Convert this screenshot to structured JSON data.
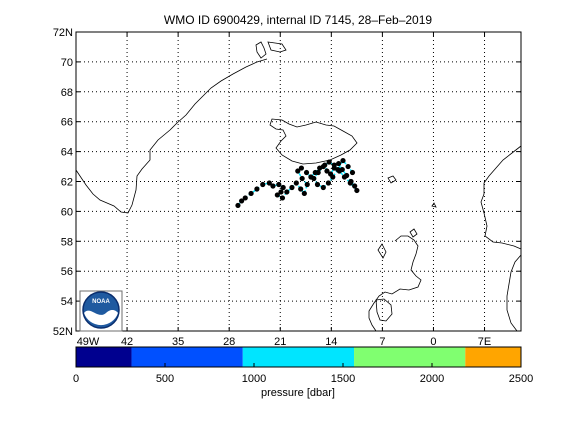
{
  "chart_data": {
    "type": "scatter",
    "title": "WMO ID 6900429, internal ID 7145, 28–Feb–2019",
    "x_tick_labels": [
      "49W",
      "42",
      "35",
      "28",
      "21",
      "14",
      "7",
      "0",
      "7E"
    ],
    "y_tick_labels": [
      "52N",
      "54",
      "56",
      "58",
      "60",
      "62",
      "64",
      "66",
      "68",
      "70",
      "72N"
    ],
    "xlim": [
      -49,
      12
    ],
    "ylim": [
      52,
      72
    ],
    "grid": true,
    "series": [
      {
        "marker_color": "#000000",
        "line_color": "#00e5ff",
        "x": [
          -26.8,
          -26.3,
          -25.8,
          -25.0,
          -24.2,
          -23.4,
          -22.5,
          -22.0,
          -21.2,
          -20.6,
          -20.9,
          -21.4,
          -20.7,
          -20.1,
          -19.4,
          -18.8,
          -18.2,
          -17.7,
          -17.3,
          -18.0,
          -18.6,
          -18.1,
          -17.4,
          -16.8,
          -16.2,
          -15.6,
          -14.9,
          -14.6,
          -14.1,
          -13.6,
          -13.0,
          -12.5,
          -11.9,
          -11.3,
          -10.8,
          -10.5,
          -11.4,
          -12.2,
          -12.9,
          -13.6,
          -14.3,
          -15.1,
          -15.8,
          -16.4,
          -15.9,
          -15.1,
          -14.4,
          -13.8,
          -13.1,
          -12.4,
          -11.7,
          -11.1
        ],
        "y": [
          60.4,
          60.7,
          60.9,
          61.2,
          61.5,
          61.8,
          61.9,
          61.7,
          61.8,
          61.6,
          61.3,
          61.1,
          60.9,
          61.3,
          61.6,
          61.9,
          61.5,
          61.2,
          61.8,
          62.2,
          62.7,
          62.9,
          62.6,
          62.3,
          62.6,
          62.9,
          63.1,
          62.7,
          62.5,
          62.9,
          63.2,
          62.8,
          62.4,
          62.0,
          61.7,
          61.4,
          61.9,
          62.3,
          62.7,
          63.1,
          63.3,
          63.0,
          62.6,
          62.2,
          61.8,
          61.6,
          61.9,
          62.3,
          62.8,
          63.4,
          63.0,
          62.6
        ]
      }
    ],
    "colorbar": {
      "label": "pressure [dbar]",
      "tick_labels": [
        "0",
        "500",
        "1000",
        "1500",
        "2000",
        "2500"
      ],
      "range": [
        0,
        2500
      ],
      "segments": [
        {
          "from": 0,
          "to": 312,
          "color": "#00008f"
        },
        {
          "from": 312,
          "to": 937,
          "color": "#0050ff"
        },
        {
          "from": 937,
          "to": 1562,
          "color": "#00e5ff"
        },
        {
          "from": 1562,
          "to": 2187,
          "color": "#80ff70"
        },
        {
          "from": 2187,
          "to": 2500,
          "color": "#ffa500"
        }
      ]
    }
  }
}
